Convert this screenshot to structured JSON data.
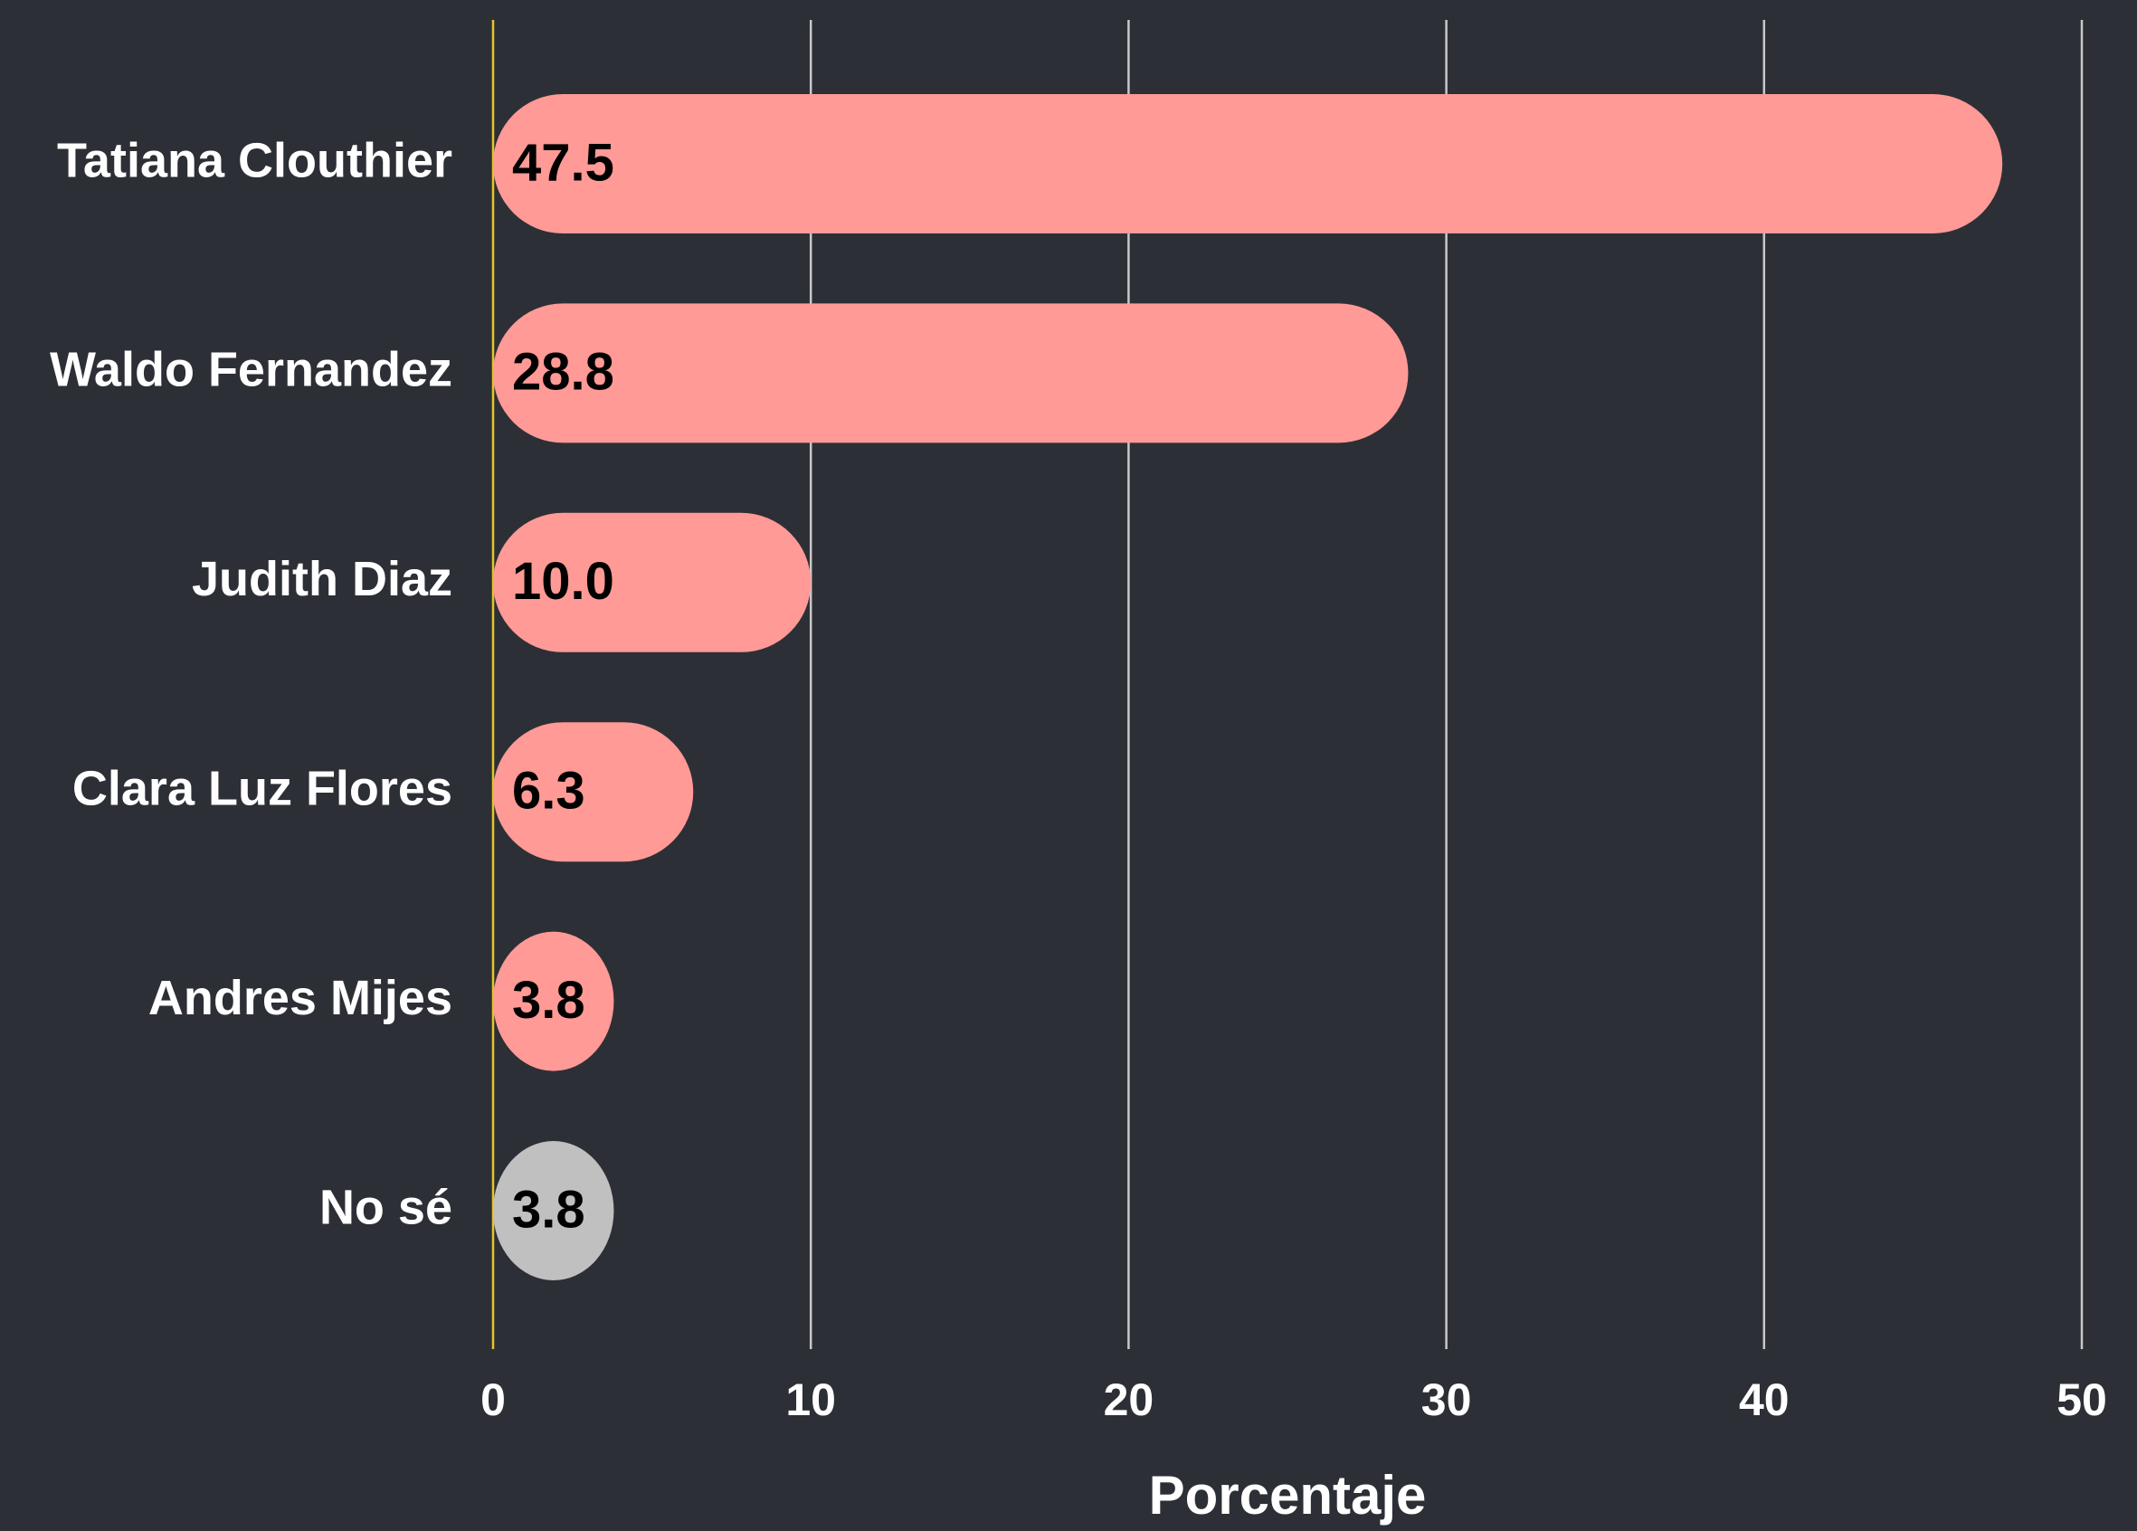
{
  "chart_data": {
    "type": "barh",
    "categories": [
      "Tatiana Clouthier",
      "Waldo Fernandez",
      "Judith Diaz",
      "Clara Luz Flores",
      "Andres Mijes",
      "No sé"
    ],
    "values": [
      47.5,
      28.8,
      10.0,
      6.3,
      3.8,
      3.8
    ],
    "value_labels": [
      "47.5",
      "28.8",
      "10.0",
      "6.3",
      "3.8",
      "3.8"
    ],
    "colors": [
      "#ff9a96",
      "#ff9a96",
      "#ff9a96",
      "#ff9a96",
      "#ff9a96",
      "#c0c0c0"
    ],
    "xlim": [
      0,
      50
    ],
    "xticks": [
      0,
      10,
      20,
      30,
      40,
      50
    ],
    "xlabel": "Porcentaje",
    "grid": true,
    "grid_color": "#c8c8c8",
    "zero_line_color": "#e6c32a"
  }
}
